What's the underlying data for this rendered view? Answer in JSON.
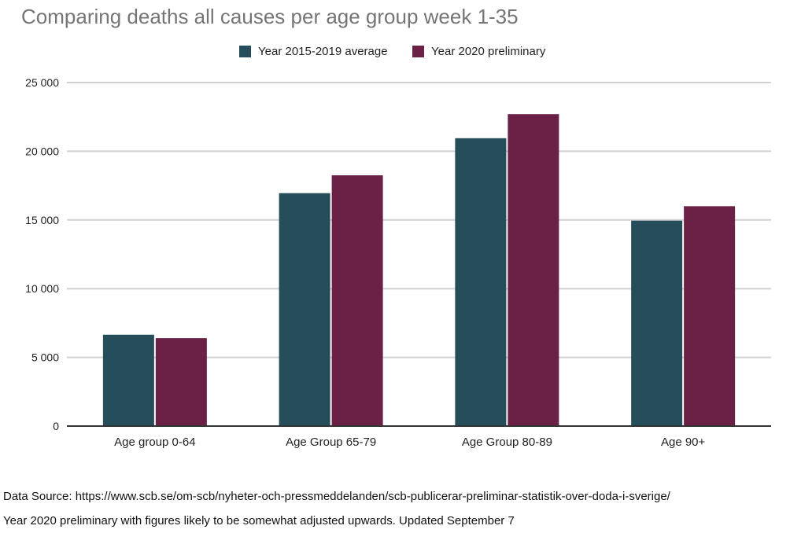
{
  "chart_data": {
    "type": "bar",
    "title": "Comparing deaths all causes per age group week 1-35",
    "categories": [
      "Age group 0-64",
      "Age Group 65-79",
      "Age Group 80-89",
      "Age 90+"
    ],
    "series": [
      {
        "name": "Year 2015-2019 average",
        "color": "#264d5a",
        "values": [
          6650,
          16950,
          20950,
          14950
        ]
      },
      {
        "name": "Year 2020 preliminary",
        "color": "#6b2045",
        "values": [
          6400,
          18250,
          22700,
          16000
        ]
      }
    ],
    "ylim": [
      0,
      25000
    ],
    "yticks": [
      0,
      5000,
      10000,
      15000,
      20000,
      25000
    ],
    "ytick_labels": [
      "0",
      "5 000",
      "10 000",
      "15 000",
      "20 000",
      "25 000"
    ],
    "grid": true,
    "legend_position": "top"
  },
  "footnotes": {
    "source": "Data Source: https://www.scb.se/om-scb/nyheter-och-pressmeddelanden/scb-publicerar-preliminar-statistik-over-doda-i-sverige/",
    "note": "Year 2020 preliminary with figures likely to be somewhat adjusted upwards. Updated September 7"
  }
}
